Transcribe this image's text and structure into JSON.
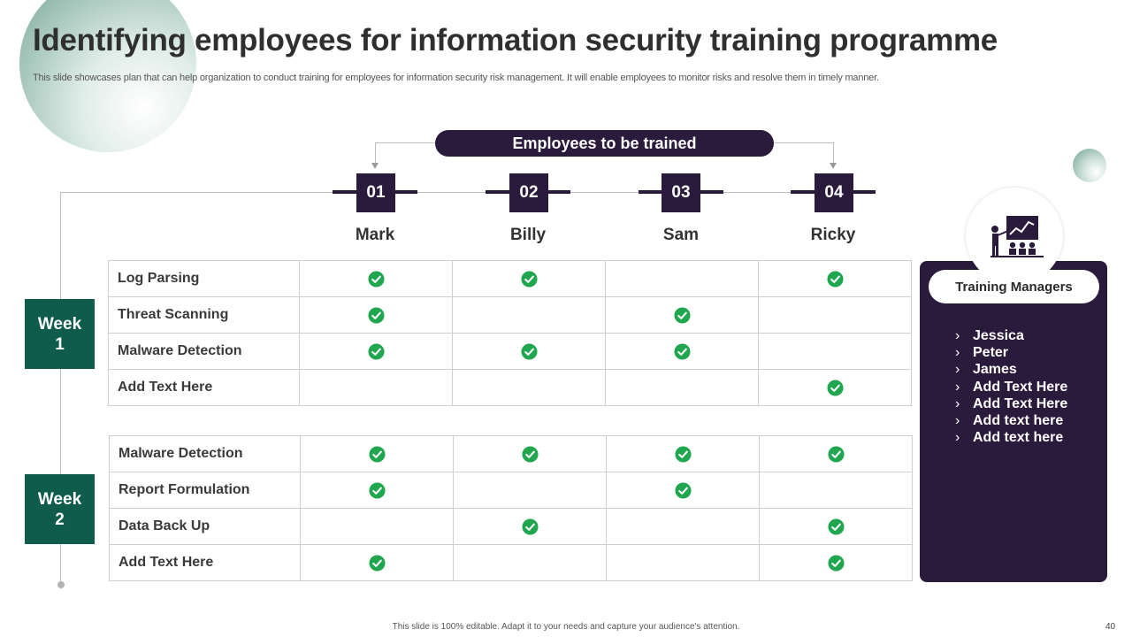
{
  "title": "Identifying employees for information security training programme",
  "subtitle": "This slide showcases plan that can help organization to conduct training for employees for information security risk management. It will enable employees to monitor risks and resolve them in timely manner.",
  "employees_header": "Employees to be trained",
  "employees": [
    {
      "number": "01",
      "name": "Mark"
    },
    {
      "number": "02",
      "name": "Billy"
    },
    {
      "number": "03",
      "name": "Sam"
    },
    {
      "number": "04",
      "name": "Ricky"
    }
  ],
  "weeks": [
    {
      "label_line1": "Week",
      "label_line2": "1",
      "rows": [
        {
          "task": "Log Parsing",
          "checks": [
            true,
            true,
            false,
            true
          ]
        },
        {
          "task": "Threat Scanning",
          "checks": [
            true,
            false,
            true,
            false
          ]
        },
        {
          "task": "Malware Detection",
          "checks": [
            true,
            true,
            true,
            false
          ]
        },
        {
          "task": "Add Text Here",
          "checks": [
            false,
            false,
            false,
            true
          ]
        }
      ]
    },
    {
      "label_line1": "Week",
      "label_line2": "2",
      "rows": [
        {
          "task": "Malware Detection",
          "checks": [
            true,
            true,
            true,
            true
          ]
        },
        {
          "task": "Report Formulation",
          "checks": [
            true,
            false,
            true,
            false
          ]
        },
        {
          "task": "Data Back Up",
          "checks": [
            false,
            true,
            false,
            true
          ]
        },
        {
          "task": "Add Text Here",
          "checks": [
            true,
            false,
            false,
            true
          ]
        }
      ]
    }
  ],
  "training_managers": {
    "label": "Training Managers",
    "icon": "presentation-icon",
    "names": [
      "Jessica",
      "Peter",
      "James",
      "Add Text Here",
      "Add Text Here",
      "Add text here",
      "Add text here"
    ]
  },
  "footer": "This slide is 100% editable. Adapt it to your needs and capture your audience's attention.",
  "page_number": "40",
  "colors": {
    "dark_purple": "#2a1a3b",
    "week_green": "#0f5c4d",
    "check_green": "#1fa64f"
  }
}
